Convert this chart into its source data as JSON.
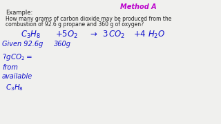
{
  "bg_color": "#f0f0ee",
  "title_top": "Method A",
  "example_label": "Example:",
  "question_line1": "How many grams of carbon dioxide may be produced from the",
  "question_line2": "combustion of 92.6 g propane and 360 g of oxygen?",
  "handwriting_color": "#1111cc",
  "print_color": "#222222",
  "title_color": "#bb00cc"
}
